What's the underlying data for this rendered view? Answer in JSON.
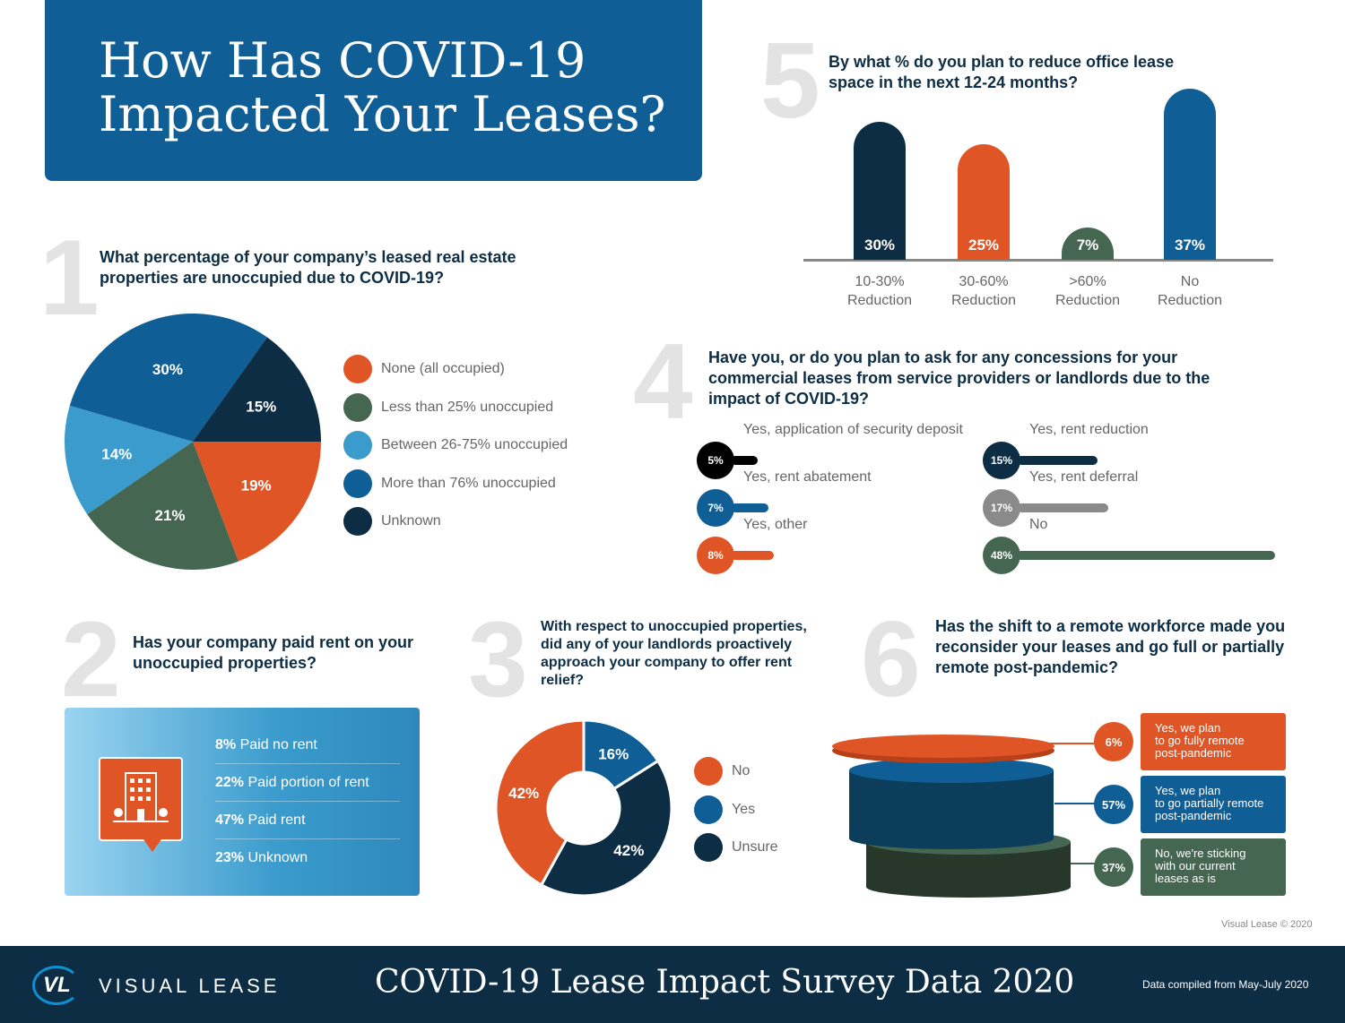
{
  "header": {
    "title": "How Has COVID-19\nImpacted Your Leases?"
  },
  "colors": {
    "blue": "#0f5e96",
    "navy": "#0c2d44",
    "orange": "#e05525",
    "green": "#456650",
    "light_blue": "#3a9bcc",
    "gray": "#8a8a8a"
  },
  "q1": {
    "number": "1",
    "question": "What percentage of your company’s leased real estate properties are unoccupied due to COVID-19?"
  },
  "q2": {
    "number": "2",
    "question": "Has your company paid rent on your unoccupied properties?",
    "icon": "building-icon",
    "items": [
      {
        "pct": "8%",
        "label": "Paid no rent"
      },
      {
        "pct": "22%",
        "label": "Paid portion of rent"
      },
      {
        "pct": "47%",
        "label": "Paid rent"
      },
      {
        "pct": "23%",
        "label": "Unknown"
      }
    ]
  },
  "q3": {
    "number": "3",
    "question": "With respect to unoccupied properties, did any of your landlords proactively approach your company to offer rent relief?"
  },
  "q4": {
    "number": "4",
    "question": "Have you, or do you plan to ask for any concessions for your commercial leases from service providers or landlords due to the impact of COVID-19?"
  },
  "q5": {
    "number": "5",
    "question": "By what % do you plan to reduce office lease space in the next 12-24 months?"
  },
  "q6": {
    "number": "6",
    "question": "Has the shift to a remote workforce made you reconsider your leases and go full or partially remote post-pandemic?"
  },
  "chart_data": [
    {
      "id": "q1",
      "type": "pie",
      "categories": [
        "None (all occupied)",
        "Less than 25% unoccupied",
        "Between 26-75% unoccupied",
        "More than 76% unoccupied",
        "Unknown"
      ],
      "values": [
        19,
        21,
        14,
        30,
        15
      ],
      "labels": [
        "19%",
        "21%",
        "14%",
        "30%",
        "15%"
      ],
      "colors": [
        "#e05525",
        "#456650",
        "#3a9bcc",
        "#0f5e96",
        "#0c2d44"
      ],
      "legend": "right"
    },
    {
      "id": "q3",
      "type": "pie",
      "donut": true,
      "categories": [
        "No",
        "Yes",
        "Unsure"
      ],
      "values": [
        42,
        16,
        42
      ],
      "labels": [
        "42%",
        "16%",
        "42%"
      ],
      "colors": [
        "#e05525",
        "#0f5e96",
        "#0c2d44"
      ],
      "legend": "right"
    },
    {
      "id": "q4",
      "type": "bar",
      "orientation": "horizontal",
      "categories": [
        "Yes, application of security deposit",
        "Yes, rent abatement",
        "Yes, other",
        "Yes, rent reduction",
        "Yes, rent deferral",
        "No"
      ],
      "values": [
        5,
        7,
        8,
        15,
        17,
        48
      ],
      "labels": [
        "5%",
        "7%",
        "8%",
        "15%",
        "17%",
        "48%"
      ],
      "colors": [
        "#000000",
        "#0f5e96",
        "#e05525",
        "#0c2d44",
        "#8a8a8a",
        "#456650"
      ]
    },
    {
      "id": "q5",
      "type": "bar",
      "categories": [
        "10-30%\nReduction",
        "30-60%\nReduction",
        ">60%\nReduction",
        "No\nReduction"
      ],
      "values": [
        30,
        25,
        7,
        37
      ],
      "labels": [
        "30%",
        "25%",
        "7%",
        "37%"
      ],
      "colors": [
        "#0c2d44",
        "#e05525",
        "#456650",
        "#0f5e96"
      ]
    },
    {
      "id": "q6",
      "type": "stacked-discs",
      "categories": [
        "Yes, we plan\nto go fully remote\npost-pandemic",
        "Yes, we plan\nto go partially remote\npost-pandemic",
        "No, we're sticking\nwith our current\nleases as is"
      ],
      "values": [
        6,
        57,
        37
      ],
      "labels": [
        "6%",
        "57%",
        "37%"
      ],
      "colors": [
        "#e05525",
        "#0f5e96",
        "#456650"
      ]
    }
  ],
  "copyright": "Visual Lease © 2020",
  "footer": {
    "logo_mark": "VL",
    "brand": "VISUAL LEASE",
    "title": "COVID-19 Lease Impact Survey Data 2020",
    "note": "Data compiled from May-July 2020"
  }
}
